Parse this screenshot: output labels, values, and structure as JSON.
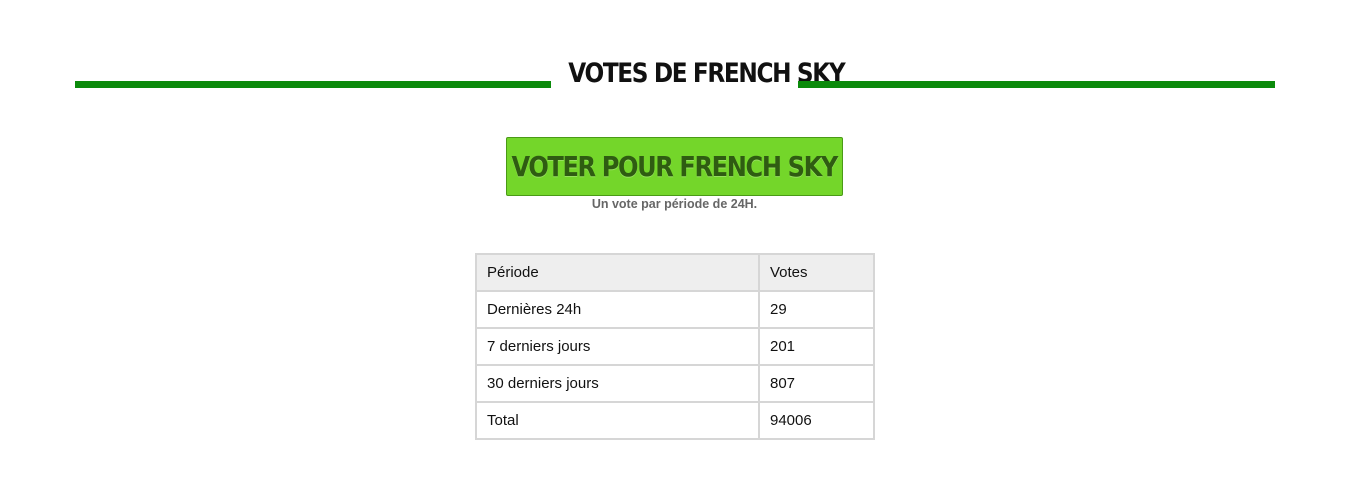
{
  "section": {
    "title": "VOTES DE FRENCH SKY",
    "accent_color": "#0b8a0b"
  },
  "vote": {
    "button_label": "VOTER POUR FRENCH SKY",
    "button_color": "#74d62a",
    "note": "Un vote par période de 24H."
  },
  "table": {
    "headers": {
      "period": "Période",
      "votes": "Votes"
    },
    "rows": [
      {
        "period": "Dernières 24h",
        "votes": "29"
      },
      {
        "period": "7 derniers jours",
        "votes": "201"
      },
      {
        "period": "30 derniers jours",
        "votes": "807"
      },
      {
        "period": "Total",
        "votes": "94006"
      }
    ]
  }
}
